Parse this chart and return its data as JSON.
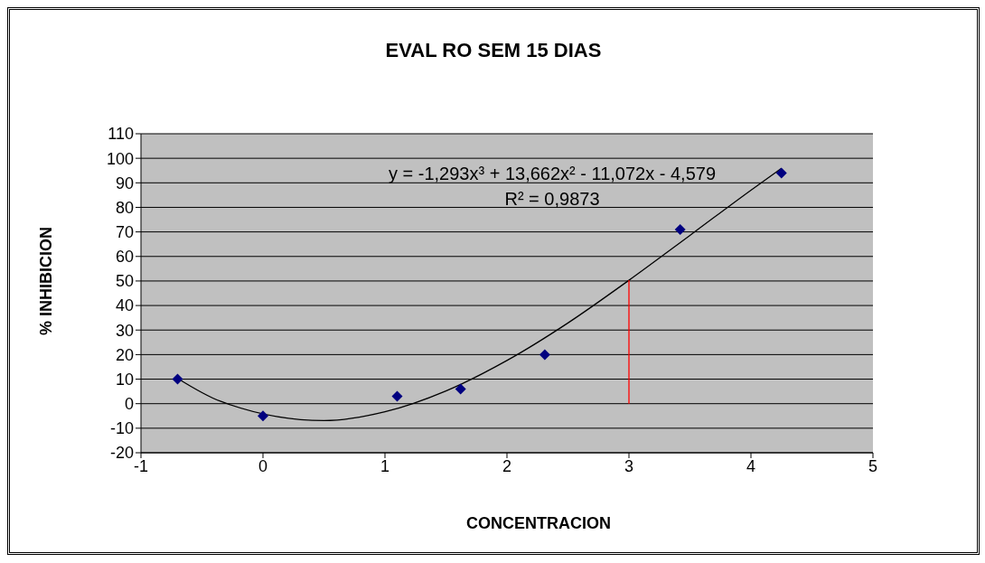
{
  "chart_data": {
    "type": "scatter",
    "title": "EVAL RO SEM 15 DIAS",
    "xlabel": "CONCENTRACION",
    "ylabel": "% INHIBICION",
    "series": [
      {
        "marker": "diamond",
        "color": "#000080",
        "x": [
          -0.7,
          0,
          1.1,
          1.62,
          2.31,
          3.42,
          4.25
        ],
        "values": [
          10,
          -5,
          3,
          6,
          20,
          71,
          94
        ]
      },
      {
        "type": "line",
        "marker": "none",
        "color": "#000000",
        "x": [
          -0.7,
          -0.35,
          0.5,
          1,
          1.5,
          2,
          2.5,
          3,
          3.5,
          4,
          4.25
        ],
        "values": [
          10.3,
          1,
          -6.9,
          -3.3,
          5.2,
          17.6,
          32.9,
          50.3,
          68.6,
          87,
          95.9
        ]
      },
      {
        "type": "line",
        "marker": "none",
        "color": "#ff0000",
        "x": [
          3,
          3
        ],
        "values": [
          0,
          50.3
        ]
      }
    ],
    "xlim": [
      -1,
      5
    ],
    "xticks": [
      -1,
      0,
      1,
      2,
      3,
      4,
      5
    ],
    "ylim": [
      -20,
      110
    ],
    "yticks": [
      -20,
      -10,
      0,
      10,
      20,
      30,
      40,
      50,
      60,
      70,
      80,
      90,
      100,
      110
    ],
    "grid": "y",
    "line_style": "solid",
    "annotations": [
      "y = -1,293x³ + 13,662x² - 11,072x - 4,579",
      "R² = 0,9873"
    ]
  }
}
